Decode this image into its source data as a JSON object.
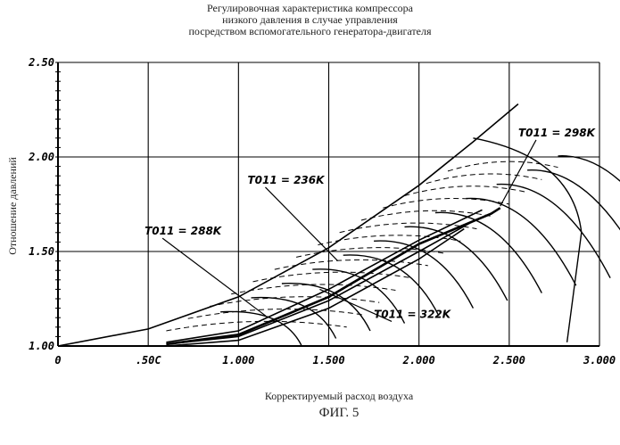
{
  "chart_data": {
    "type": "line",
    "title_lines": [
      "Регулировочная характеристика компрессора",
      "низкого давления в случае управления",
      "посредством вспомогательного генератора-двигателя"
    ],
    "xlabel": "Корректируемый расход воздуха",
    "ylabel": "Отношение давлений",
    "xlim": [
      0,
      3.0
    ],
    "ylim": [
      1.0,
      2.5
    ],
    "x_ticks": [
      0,
      0.5,
      1.0,
      1.5,
      2.0,
      2.5,
      3.0
    ],
    "x_tick_labels": [
      "0",
      ".50C",
      "1.000",
      "1.500",
      "2.000",
      "2.500",
      "3.000"
    ],
    "y_ticks": [
      1.0,
      1.5,
      2.0,
      2.5
    ],
    "y_tick_labels": [
      "1.00",
      "1.50",
      "2.00",
      "2.50"
    ],
    "grid": true,
    "series": [
      {
        "name": "T011 = 298K",
        "values": [
          [
            0.6,
            1.01
          ],
          [
            1.0,
            1.06
          ],
          [
            1.5,
            1.26
          ],
          [
            2.0,
            1.54
          ],
          [
            2.4,
            1.7
          ],
          [
            2.45,
            1.73
          ]
        ]
      },
      {
        "name": "T011 = 236K",
        "values": [
          [
            0.6,
            1.02
          ],
          [
            1.0,
            1.08
          ],
          [
            1.5,
            1.3
          ],
          [
            2.0,
            1.56
          ],
          [
            2.35,
            1.72
          ]
        ]
      },
      {
        "name": "T011 = 288K",
        "values": [
          [
            0.6,
            1.01
          ],
          [
            1.0,
            1.05
          ],
          [
            1.5,
            1.24
          ],
          [
            2.0,
            1.5
          ],
          [
            2.3,
            1.66
          ]
        ]
      },
      {
        "name": "T011 = 322K",
        "values": [
          [
            0.6,
            1.0
          ],
          [
            1.0,
            1.03
          ],
          [
            1.5,
            1.2
          ],
          [
            2.0,
            1.46
          ],
          [
            2.25,
            1.62
          ]
        ]
      }
    ],
    "surge_line": [
      [
        0.0,
        1.0
      ],
      [
        0.5,
        1.09
      ],
      [
        1.0,
        1.26
      ],
      [
        1.5,
        1.52
      ],
      [
        2.0,
        1.85
      ],
      [
        2.3,
        2.08
      ],
      [
        2.55,
        2.28
      ]
    ],
    "annotations": [
      "T011 = 298K",
      "T011 = 236K",
      "T011 = 288K",
      "T011 = 322K"
    ]
  },
  "caption": "ФИГ. 5"
}
